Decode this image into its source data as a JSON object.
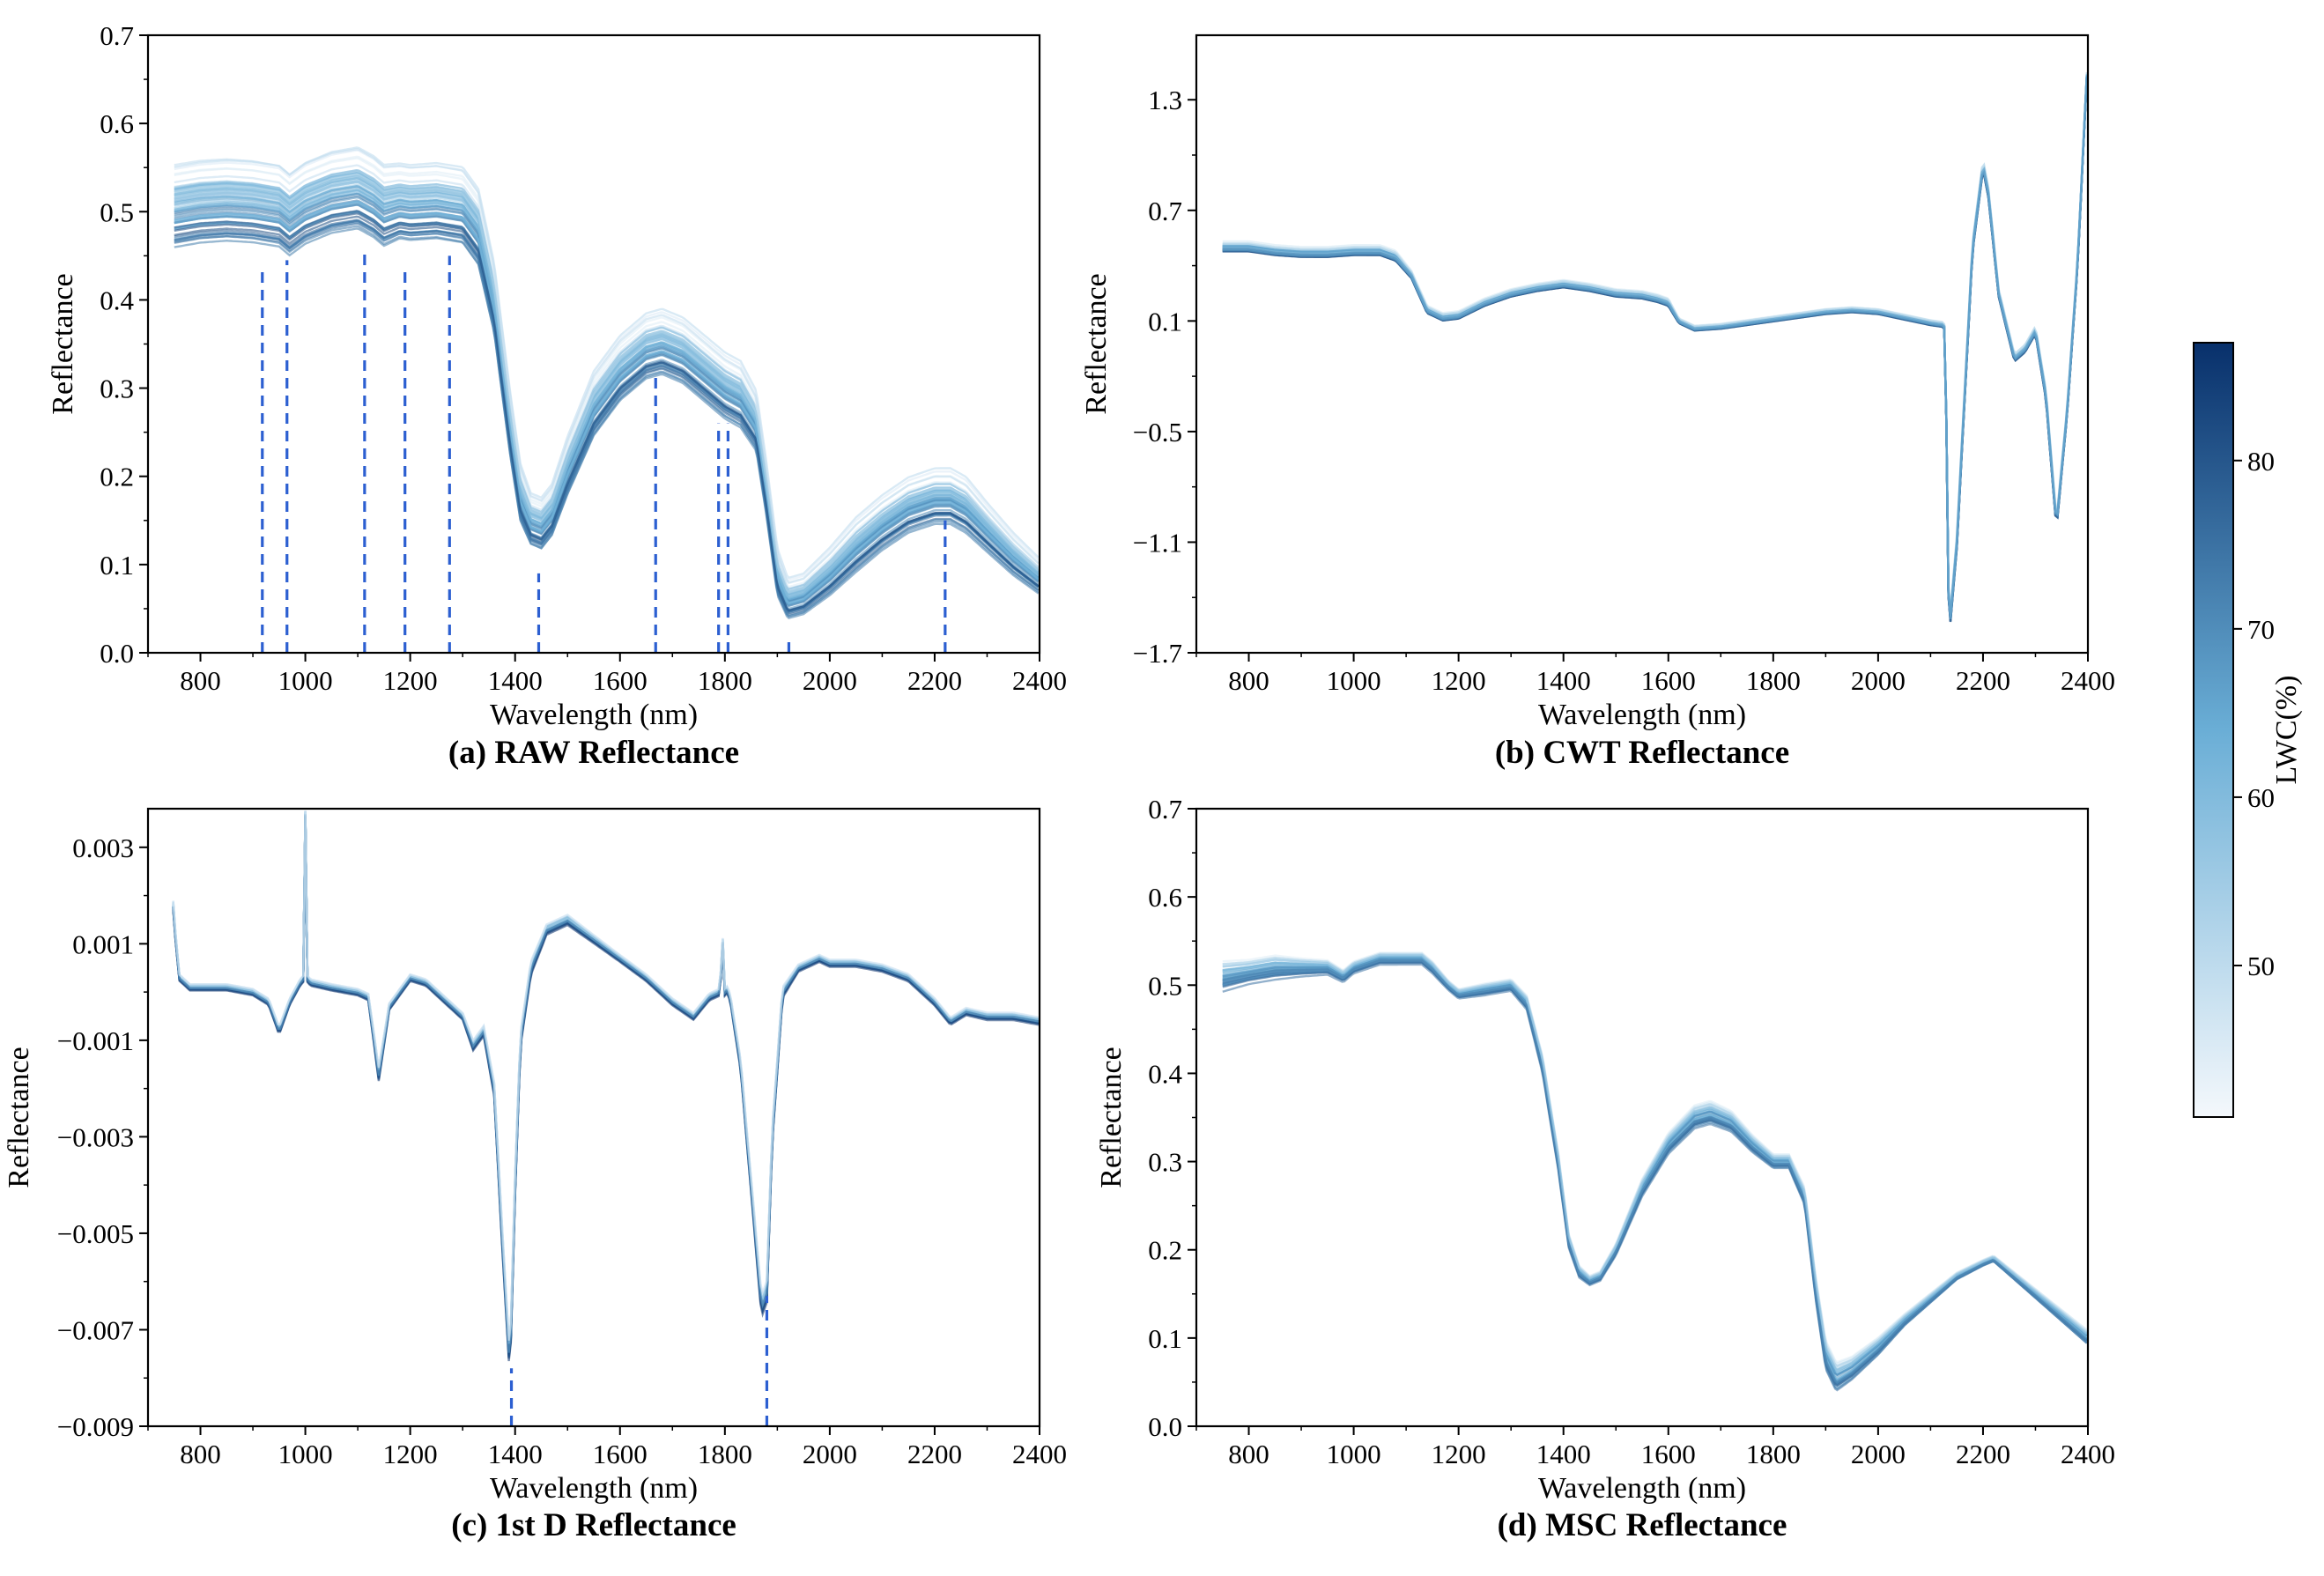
{
  "figure": {
    "colorbar": {
      "label": "LWC(%)",
      "min": 41,
      "max": 87,
      "ticks": [
        "50",
        "60",
        "70",
        "80"
      ],
      "tick_values": [
        50,
        60,
        70,
        80
      ],
      "color_low": "#f4f8fc",
      "color_mid": "#6aaed6",
      "color_high": "#08306b"
    },
    "guide_color": "#2c5fd1"
  },
  "chart_data": [
    {
      "type": "line",
      "panel": "a",
      "title": "(a) RAW Reflectance",
      "xlabel": "Wavelength (nm)",
      "ylabel": "Reflectance",
      "xlim": [
        700,
        2400
      ],
      "ylim": [
        0.0,
        0.7
      ],
      "xticks": [
        "800",
        "1000",
        "1200",
        "1400",
        "1600",
        "1800",
        "2000",
        "2200",
        "2400"
      ],
      "yticks": [
        "0.0",
        "0.1",
        "0.2",
        "0.3",
        "0.4",
        "0.5",
        "0.6",
        "0.7"
      ],
      "ytick_values": [
        0.0,
        0.1,
        0.2,
        0.3,
        0.4,
        0.5,
        0.6,
        0.7
      ],
      "series_count": 60,
      "mean_x": [
        750,
        800,
        850,
        900,
        950,
        970,
        1000,
        1050,
        1100,
        1130,
        1150,
        1180,
        1200,
        1250,
        1300,
        1330,
        1360,
        1390,
        1410,
        1430,
        1450,
        1470,
        1500,
        1550,
        1600,
        1650,
        1680,
        1720,
        1760,
        1800,
        1830,
        1860,
        1880,
        1900,
        1920,
        1950,
        2000,
        2050,
        2100,
        2150,
        2200,
        2230,
        2260,
        2300,
        2350,
        2400
      ],
      "mean_y": [
        0.505,
        0.51,
        0.512,
        0.51,
        0.505,
        0.495,
        0.508,
        0.52,
        0.525,
        0.515,
        0.505,
        0.51,
        0.508,
        0.51,
        0.505,
        0.48,
        0.4,
        0.26,
        0.18,
        0.15,
        0.145,
        0.16,
        0.21,
        0.28,
        0.32,
        0.345,
        0.35,
        0.34,
        0.32,
        0.3,
        0.29,
        0.26,
        0.18,
        0.09,
        0.06,
        0.065,
        0.09,
        0.12,
        0.145,
        0.165,
        0.175,
        0.175,
        0.165,
        0.14,
        0.11,
        0.085
      ],
      "spread": [
        0.065,
        0.065,
        0.065,
        0.065,
        0.065,
        0.065,
        0.065,
        0.065,
        0.065,
        0.065,
        0.065,
        0.06,
        0.06,
        0.06,
        0.06,
        0.06,
        0.055,
        0.05,
        0.045,
        0.04,
        0.04,
        0.04,
        0.045,
        0.05,
        0.05,
        0.05,
        0.05,
        0.05,
        0.05,
        0.05,
        0.05,
        0.045,
        0.04,
        0.035,
        0.03,
        0.03,
        0.035,
        0.04,
        0.04,
        0.04,
        0.04,
        0.04,
        0.04,
        0.035,
        0.03,
        0.025
      ],
      "markers": [
        {
          "x": 918,
          "y": 0.435
        },
        {
          "x": 965,
          "y": 0.445
        },
        {
          "x": 1113,
          "y": 0.455
        },
        {
          "x": 1190,
          "y": 0.435
        },
        {
          "x": 1275,
          "y": 0.45
        },
        {
          "x": 1445,
          "y": 0.09
        },
        {
          "x": 1668,
          "y": 0.315
        },
        {
          "x": 1788,
          "y": 0.26
        },
        {
          "x": 1806,
          "y": 0.26
        },
        {
          "x": 1922,
          "y": 0.02
        },
        {
          "x": 2220,
          "y": 0.15
        }
      ]
    },
    {
      "type": "line",
      "panel": "b",
      "title": "(b) CWT Reflectance",
      "xlabel": "Wavelength (nm)",
      "ylabel": "Reflectance",
      "xlim": [
        700,
        2400
      ],
      "ylim": [
        -1.7,
        1.65
      ],
      "xticks": [
        "800",
        "1000",
        "1200",
        "1400",
        "1600",
        "1800",
        "2000",
        "2200",
        "2400"
      ],
      "yticks": [
        "1.3",
        "0.7",
        "0.1",
        "−0.5",
        "−1.1",
        "−1.7"
      ],
      "ytick_values": [
        1.3,
        0.7,
        0.1,
        -0.5,
        -1.1,
        -1.7
      ],
      "series_count": 40,
      "mean_x": [
        750,
        800,
        850,
        900,
        950,
        1000,
        1050,
        1080,
        1110,
        1140,
        1170,
        1200,
        1250,
        1300,
        1350,
        1400,
        1450,
        1500,
        1550,
        1580,
        1600,
        1620,
        1650,
        1700,
        1750,
        1800,
        1850,
        1900,
        1950,
        2000,
        2050,
        2100,
        2125,
        2128,
        2135,
        2150,
        2180,
        2200,
        2210,
        2230,
        2260,
        2280,
        2300,
        2320,
        2340,
        2360,
        2380,
        2400
      ],
      "mean_y": [
        0.5,
        0.5,
        0.48,
        0.47,
        0.47,
        0.48,
        0.48,
        0.45,
        0.35,
        0.16,
        0.12,
        0.13,
        0.2,
        0.25,
        0.28,
        0.3,
        0.28,
        0.25,
        0.24,
        0.22,
        0.2,
        0.1,
        0.06,
        0.07,
        0.09,
        0.11,
        0.13,
        0.15,
        0.16,
        0.15,
        0.12,
        0.09,
        0.08,
        0.05,
        -1.6,
        -1.1,
        0.5,
        0.95,
        0.8,
        0.25,
        -0.1,
        -0.05,
        0.05,
        -0.3,
        -1.0,
        -0.4,
        0.4,
        1.55
      ],
      "spread": [
        0.04,
        0.04,
        0.04,
        0.04,
        0.04,
        0.04,
        0.04,
        0.04,
        0.03,
        0.03,
        0.03,
        0.03,
        0.03,
        0.03,
        0.03,
        0.03,
        0.03,
        0.03,
        0.03,
        0.03,
        0.03,
        0.02,
        0.02,
        0.02,
        0.02,
        0.02,
        0.02,
        0.02,
        0.02,
        0.02,
        0.02,
        0.02,
        0.02,
        0.02,
        0.05,
        0.05,
        0.04,
        0.04,
        0.04,
        0.03,
        0.03,
        0.03,
        0.03,
        0.04,
        0.04,
        0.03,
        0.03,
        0.02
      ],
      "markers": []
    },
    {
      "type": "line",
      "panel": "c",
      "title": "(c) 1st D Reflectance",
      "xlabel": "Wavelength (nm)",
      "ylabel": "Reflectance",
      "xlim": [
        700,
        2400
      ],
      "ylim": [
        -0.009,
        0.0038
      ],
      "xticks": [
        "800",
        "1000",
        "1200",
        "1400",
        "1600",
        "1800",
        "2000",
        "2200",
        "2400"
      ],
      "yticks": [
        "0.003",
        "0.001",
        "−0.001",
        "−0.003",
        "−0.005",
        "−0.007",
        "−0.009"
      ],
      "ytick_values": [
        0.003,
        0.001,
        -0.001,
        -0.003,
        -0.005,
        -0.007,
        -0.009
      ],
      "series_count": 40,
      "mean_x": [
        748,
        752,
        760,
        780,
        800,
        850,
        900,
        930,
        950,
        970,
        990,
        998,
        1000,
        1002,
        1010,
        1050,
        1100,
        1120,
        1140,
        1160,
        1180,
        1200,
        1230,
        1260,
        1300,
        1320,
        1340,
        1360,
        1375,
        1390,
        1400,
        1410,
        1430,
        1460,
        1500,
        1550,
        1600,
        1650,
        1700,
        1740,
        1770,
        1790,
        1798,
        1800,
        1802,
        1810,
        1830,
        1850,
        1870,
        1880,
        1890,
        1910,
        1940,
        1980,
        2000,
        2050,
        2100,
        2150,
        2200,
        2230,
        2260,
        2300,
        2350,
        2400
      ],
      "mean_y": [
        0.0018,
        0.0012,
        0.0003,
        0.0001,
        0.0001,
        0.0001,
        0.0,
        -0.0002,
        -0.0008,
        -0.0002,
        0.0002,
        0.0003,
        0.0037,
        0.0003,
        0.0002,
        0.0001,
        0.0,
        -0.0001,
        -0.0017,
        -0.0003,
        0.0,
        0.0003,
        0.0002,
        -0.0001,
        -0.0005,
        -0.0011,
        -0.0008,
        -0.002,
        -0.005,
        -0.0078,
        -0.004,
        -0.001,
        0.0005,
        0.0013,
        0.0015,
        0.0011,
        0.0007,
        0.0003,
        -0.0002,
        -0.0005,
        -0.0001,
        0.0,
        0.0014,
        0.0,
        0.0001,
        -0.0001,
        -0.0015,
        -0.004,
        -0.0065,
        -0.0062,
        -0.003,
        0.0,
        0.0005,
        0.0007,
        0.0006,
        0.0006,
        0.0005,
        0.0003,
        -0.0002,
        -0.0006,
        -0.0004,
        -0.0005,
        -0.0005,
        -0.0006
      ],
      "spread": [
        0.00015,
        0.00012,
        0.0001,
        0.0001,
        0.0001,
        0.0001,
        0.0001,
        0.0001,
        0.00012,
        0.0001,
        0.0001,
        0.0001,
        0.0001,
        0.0001,
        0.0001,
        0.0001,
        0.0001,
        0.0001,
        0.0002,
        0.0001,
        0.0001,
        0.0001,
        0.0001,
        0.0001,
        0.0001,
        0.00015,
        0.00015,
        0.0002,
        0.0003,
        0.0003,
        0.0003,
        0.0002,
        0.0002,
        0.00015,
        0.00015,
        0.00012,
        0.0001,
        0.0001,
        0.0001,
        0.0001,
        0.0001,
        0.0001,
        0.0001,
        0.0001,
        0.0001,
        0.0001,
        0.00015,
        0.0002,
        0.0003,
        0.0003,
        0.0002,
        0.00015,
        0.0001,
        0.0001,
        0.0001,
        0.0001,
        0.0001,
        0.0001,
        0.0001,
        0.0001,
        0.0001,
        0.0001,
        0.0001,
        0.0001
      ],
      "markers": [
        {
          "x": 1393,
          "y": -0.0078
        },
        {
          "x": 1880,
          "y": -0.0063
        }
      ]
    },
    {
      "type": "line",
      "panel": "d",
      "title": "(d) MSC Reflectance",
      "xlabel": "Wavelength (nm)",
      "ylabel": "Reflectance",
      "xlim": [
        700,
        2400
      ],
      "ylim": [
        0.0,
        0.7
      ],
      "xticks": [
        "800",
        "1000",
        "1200",
        "1400",
        "1600",
        "1800",
        "2000",
        "2200",
        "2400"
      ],
      "yticks": [
        "0.0",
        "0.1",
        "0.2",
        "0.3",
        "0.4",
        "0.5",
        "0.6",
        "0.7"
      ],
      "ytick_values": [
        0.0,
        0.1,
        0.2,
        0.3,
        0.4,
        0.5,
        0.6,
        0.7
      ],
      "series_count": 40,
      "mean_x": [
        750,
        800,
        850,
        900,
        950,
        980,
        1000,
        1050,
        1100,
        1130,
        1150,
        1180,
        1200,
        1250,
        1300,
        1330,
        1360,
        1390,
        1410,
        1430,
        1450,
        1470,
        1500,
        1550,
        1600,
        1650,
        1680,
        1720,
        1760,
        1800,
        1830,
        1860,
        1880,
        1900,
        1920,
        1950,
        2000,
        2050,
        2100,
        2150,
        2200,
        2220,
        2250,
        2300,
        2350,
        2400
      ],
      "mean_y": [
        0.51,
        0.515,
        0.52,
        0.52,
        0.52,
        0.51,
        0.52,
        0.53,
        0.53,
        0.53,
        0.52,
        0.5,
        0.49,
        0.495,
        0.5,
        0.48,
        0.41,
        0.3,
        0.21,
        0.175,
        0.165,
        0.17,
        0.2,
        0.27,
        0.32,
        0.35,
        0.355,
        0.345,
        0.32,
        0.3,
        0.3,
        0.26,
        0.16,
        0.08,
        0.055,
        0.065,
        0.09,
        0.12,
        0.145,
        0.17,
        0.185,
        0.19,
        0.175,
        0.15,
        0.125,
        0.1
      ],
      "spread": [
        0.025,
        0.02,
        0.02,
        0.015,
        0.012,
        0.01,
        0.01,
        0.01,
        0.01,
        0.01,
        0.01,
        0.008,
        0.008,
        0.01,
        0.01,
        0.012,
        0.015,
        0.015,
        0.012,
        0.01,
        0.008,
        0.008,
        0.01,
        0.015,
        0.018,
        0.02,
        0.02,
        0.018,
        0.015,
        0.012,
        0.012,
        0.015,
        0.02,
        0.025,
        0.025,
        0.02,
        0.015,
        0.01,
        0.008,
        0.006,
        0.005,
        0.005,
        0.006,
        0.008,
        0.01,
        0.012
      ],
      "markers": []
    }
  ]
}
